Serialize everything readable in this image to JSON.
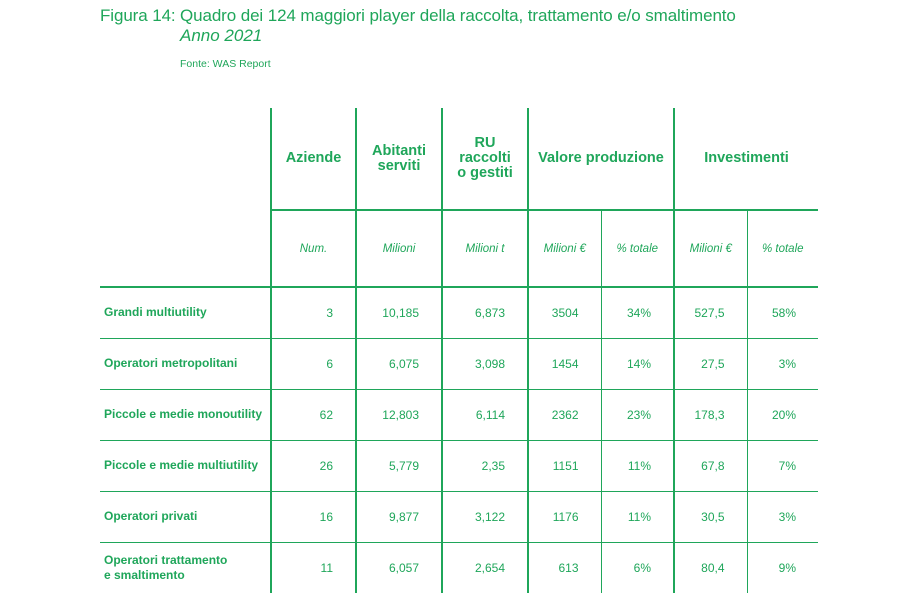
{
  "figure": {
    "label": "Figura 14:",
    "title": "Quadro dei 124 maggiori player della raccolta, trattamento e/o smaltimento",
    "year": "Anno 2021",
    "source": "Fonte: WAS Report"
  },
  "table": {
    "headers": {
      "aziende": "Aziende",
      "abitanti_1": "Abitanti",
      "abitanti_2": "serviti",
      "ru_1": "RU",
      "ru_2": "raccolti",
      "ru_3": "o gestiti",
      "valore": "Valore produzione",
      "investimenti": "Investimenti"
    },
    "units": [
      "Num.",
      "Milioni",
      "Milioni t",
      "Milioni €",
      "% totale",
      "Milioni €",
      "% totale"
    ],
    "rows": [
      {
        "label": "Grandi multiutility",
        "label2": "",
        "aziende": "3",
        "abitanti": "10,185",
        "ru": "6,873",
        "valore": "3504",
        "valore_pct": "34%",
        "inv": "527,5",
        "inv_pct": "58%"
      },
      {
        "label": "Operatori metropolitani",
        "label2": "",
        "aziende": "6",
        "abitanti": "6,075",
        "ru": "3,098",
        "valore": "1454",
        "valore_pct": "14%",
        "inv": "27,5",
        "inv_pct": "3%"
      },
      {
        "label": "Piccole e medie monoutility",
        "label2": "",
        "aziende": "62",
        "abitanti": "12,803",
        "ru": "6,114",
        "valore": "2362",
        "valore_pct": "23%",
        "inv": "178,3",
        "inv_pct": "20%"
      },
      {
        "label": "Piccole e medie multiutility",
        "label2": "",
        "aziende": "26",
        "abitanti": "5,779",
        "ru": "2,35",
        "valore": "1151",
        "valore_pct": "11%",
        "inv": "67,8",
        "inv_pct": "7%"
      },
      {
        "label": "Operatori privati",
        "label2": "",
        "aziende": "16",
        "abitanti": "9,877",
        "ru": "3,122",
        "valore": "1176",
        "valore_pct": "11%",
        "inv": "30,5",
        "inv_pct": "3%"
      },
      {
        "label": "Operatori trattamento",
        "label2": "e smaltimento",
        "aziende": "11",
        "abitanti": "6,057",
        "ru": "2,654",
        "valore": "613",
        "valore_pct": "6%",
        "inv": "80,4",
        "inv_pct": "9%"
      }
    ]
  }
}
